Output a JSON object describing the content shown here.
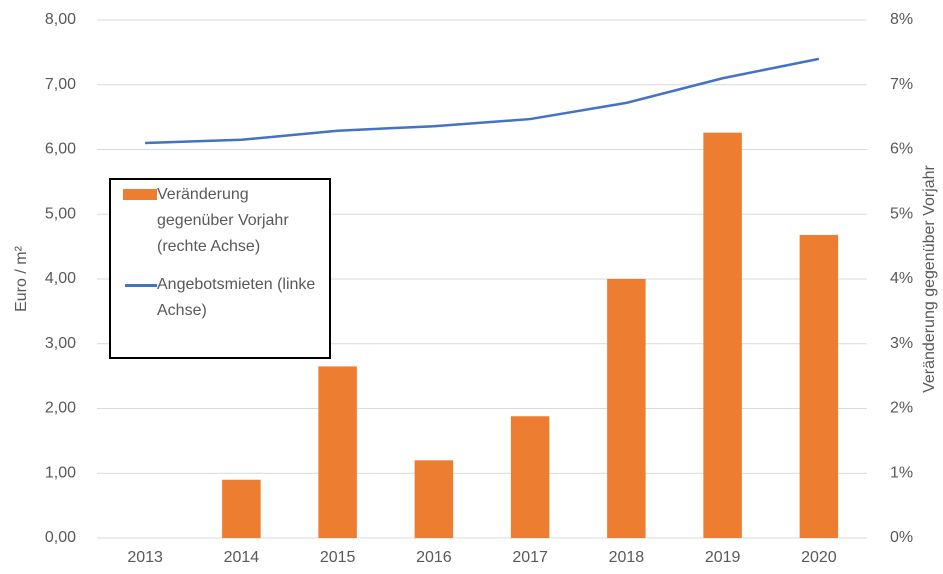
{
  "chart_data": {
    "type": "bar-line",
    "categories": [
      "2013",
      "2014",
      "2015",
      "2016",
      "2017",
      "2018",
      "2019",
      "2020"
    ],
    "series": [
      {
        "name": "Veränderung gegenüber Vorjahr (rechte Achse)",
        "type": "bar",
        "axis": "y2",
        "color": "#ed7d31",
        "values": [
          null,
          0.9,
          2.65,
          1.2,
          1.88,
          4.0,
          6.26,
          4.68
        ]
      },
      {
        "name": "Angebotsmieten (linke Achse)",
        "type": "line",
        "axis": "y",
        "color": "#4472c4",
        "values": [
          6.1,
          6.15,
          6.29,
          6.36,
          6.47,
          6.72,
          7.1,
          7.4
        ]
      }
    ],
    "ylabel": "Euro / m²",
    "y2label": "Veränderung gegenüber Vorjahr",
    "ylim": [
      0,
      8
    ],
    "yticks": [
      {
        "value": 0,
        "label": "0,00"
      },
      {
        "value": 1,
        "label": "1,00"
      },
      {
        "value": 2,
        "label": "2,00"
      },
      {
        "value": 3,
        "label": "3,00"
      },
      {
        "value": 4,
        "label": "4,00"
      },
      {
        "value": 5,
        "label": "5,00"
      },
      {
        "value": 6,
        "label": "6,00"
      },
      {
        "value": 7,
        "label": "7,00"
      },
      {
        "value": 8,
        "label": "8,00"
      }
    ],
    "y2lim": [
      0,
      8
    ],
    "y2ticks": [
      {
        "value": 0,
        "label": "0%"
      },
      {
        "value": 1,
        "label": "1%"
      },
      {
        "value": 2,
        "label": "2%"
      },
      {
        "value": 3,
        "label": "3%"
      },
      {
        "value": 4,
        "label": "4%"
      },
      {
        "value": 5,
        "label": "5%"
      },
      {
        "value": 6,
        "label": "6%"
      },
      {
        "value": 7,
        "label": "7%"
      },
      {
        "value": 8,
        "label": "8%"
      }
    ],
    "grid": true
  }
}
